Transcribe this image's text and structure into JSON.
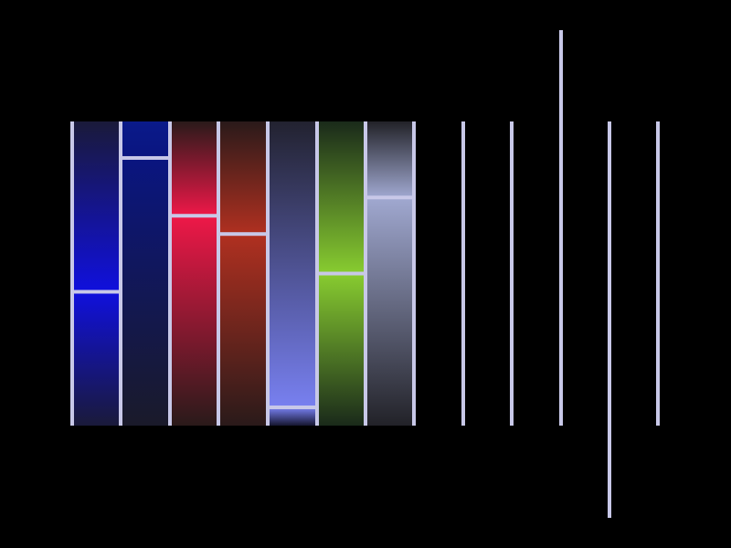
{
  "colors": {
    "background": "#000000",
    "rule": "#c8c8e8"
  },
  "panels": [
    {
      "name": "blue",
      "level": 0.44,
      "top": "#1a1a3a",
      "mid": "#1010dd",
      "bottom": "#1a1a3a"
    },
    {
      "name": "navy",
      "level": 0.88,
      "top": "#0a1a8a",
      "mid": "#0a1580",
      "bottom": "#1a1a2a"
    },
    {
      "name": "crimson",
      "level": 0.69,
      "top": "#2a1a1a",
      "mid": "#ee1848",
      "bottom": "#2a1a1a"
    },
    {
      "name": "rust",
      "level": 0.63,
      "top": "#2a1a1a",
      "mid": "#b03020",
      "bottom": "#2a1a1a"
    },
    {
      "name": "periwinkle",
      "level": 0.06,
      "top": "#222230",
      "mid": "#7880f0",
      "bottom": "#161630"
    },
    {
      "name": "lime",
      "level": 0.5,
      "top": "#1a2a1a",
      "mid": "#88cc30",
      "bottom": "#1a2a1a"
    },
    {
      "name": "slate",
      "level": 0.75,
      "top": "#222228",
      "mid": "#a0a8d0",
      "bottom": "#222228"
    }
  ],
  "long_rules": [
    {
      "name": "rule-top-extended",
      "extends": "up"
    },
    {
      "name": "rule-bottom-extended",
      "extends": "down"
    }
  ]
}
